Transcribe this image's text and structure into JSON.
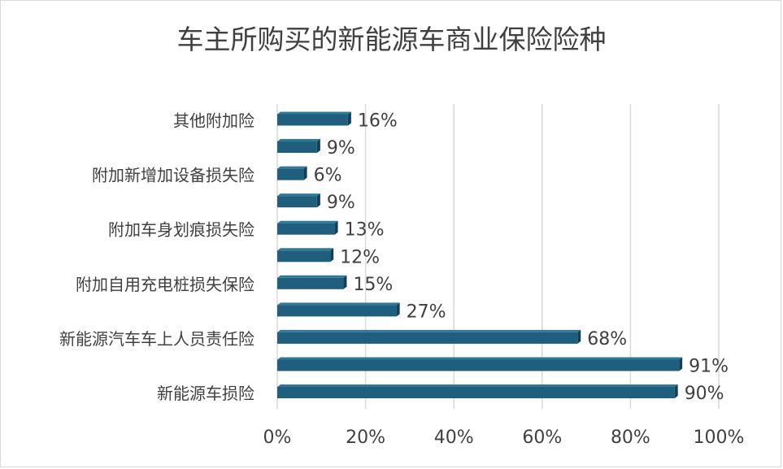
{
  "chart_data": {
    "type": "bar",
    "orientation": "horizontal",
    "title": "车主所购买的新能源车商业保险险种",
    "categories": [
      "新能源车损险",
      "",
      "新能源汽车车上人员责任险",
      "",
      "附加自用充电桩损失保险",
      "",
      "附加车身划痕损失险",
      "",
      "附加新增加设备损失险",
      "",
      "其他附加险"
    ],
    "values": [
      90,
      91,
      68,
      27,
      15,
      12,
      13,
      9,
      6,
      9,
      16
    ],
    "value_labels": [
      "90%",
      "91%",
      "68%",
      "27%",
      "15%",
      "12%",
      "13%",
      "9%",
      "6%",
      "9%",
      "16%"
    ],
    "xlim": [
      0,
      100
    ],
    "x_ticks": [
      "0%",
      "20%",
      "40%",
      "60%",
      "80%",
      "100%"
    ],
    "grid": "vertical",
    "bar_color": "#1f5f7d",
    "bar_color_dark": "#143f55"
  }
}
